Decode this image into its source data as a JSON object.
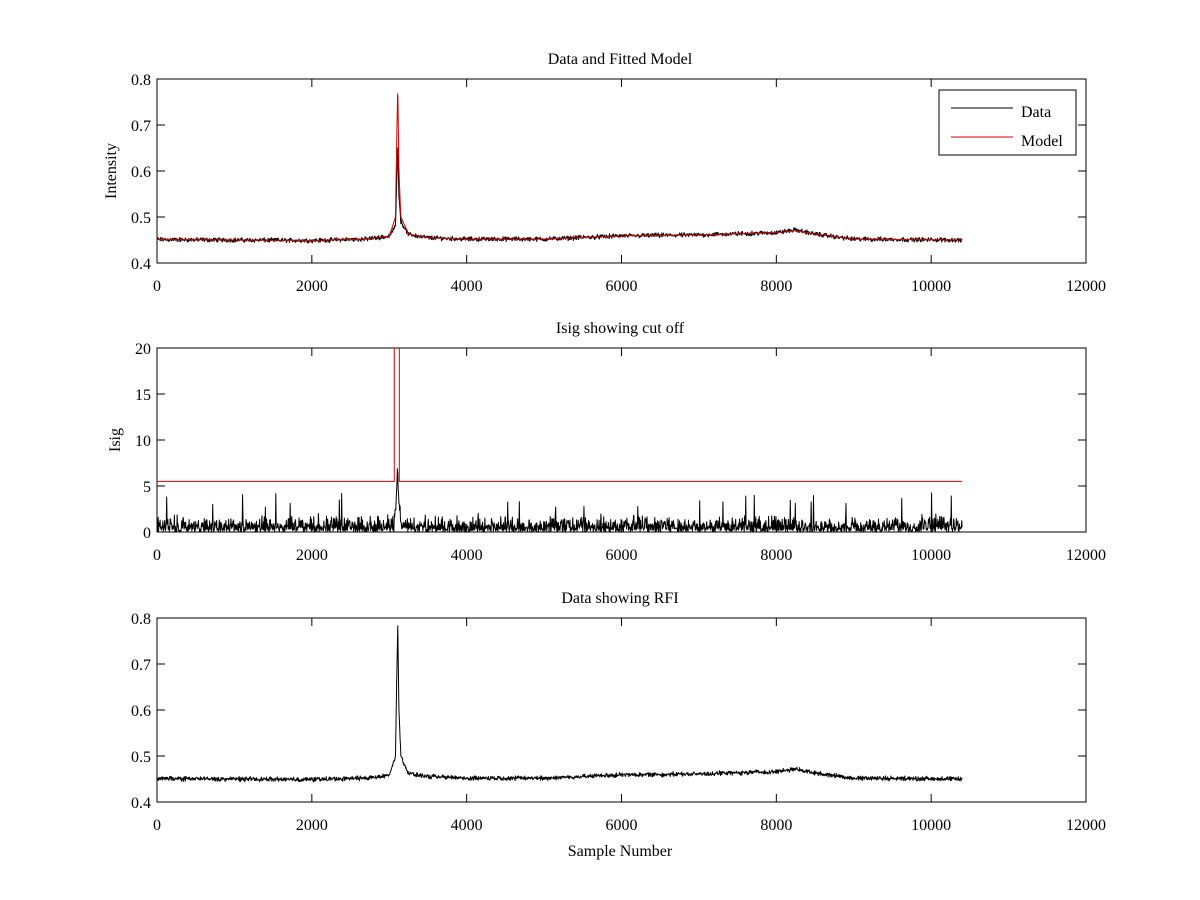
{
  "chart_data": [
    {
      "type": "line",
      "title": "Data and Fitted Model",
      "xlabel": "",
      "ylabel": "Intensity",
      "xlim": [
        0,
        12000
      ],
      "ylim": [
        0.4,
        0.8
      ],
      "xticks": [
        0,
        2000,
        4000,
        6000,
        8000,
        10000,
        12000
      ],
      "yticks": [
        0.4,
        0.5,
        0.6,
        0.7,
        0.8
      ],
      "ytick_labels": [
        "0.4",
        "0.5",
        "0.6",
        "0.7",
        "0.8"
      ],
      "grid": false,
      "legend": {
        "placement": "top-right",
        "entries": [
          "Data",
          "Model"
        ]
      },
      "series": [
        {
          "name": "Data",
          "color": "#000000",
          "x_range": [
            0,
            10400
          ],
          "baseline": [
            [
              0,
              0.451
            ],
            [
              2000,
              0.449
            ],
            [
              2700,
              0.452
            ],
            [
              3000,
              0.458
            ],
            [
              3080,
              0.48
            ],
            [
              3100,
              0.6
            ],
            [
              3110,
              0.65
            ],
            [
              3125,
              0.55
            ],
            [
              3150,
              0.49
            ],
            [
              3250,
              0.462
            ],
            [
              3500,
              0.455
            ],
            [
              4000,
              0.452
            ],
            [
              5000,
              0.452
            ],
            [
              6000,
              0.459
            ],
            [
              7000,
              0.461
            ],
            [
              8000,
              0.466
            ],
            [
              8250,
              0.472
            ],
            [
              8500,
              0.463
            ],
            [
              9000,
              0.452
            ],
            [
              10400,
              0.45
            ]
          ],
          "noise_amplitude": 0.006
        },
        {
          "name": "Model",
          "color": "#d40000",
          "x_range": [
            0,
            10400
          ],
          "baseline": [
            [
              0,
              0.451
            ],
            [
              2000,
              0.449
            ],
            [
              2700,
              0.452
            ],
            [
              3000,
              0.458
            ],
            [
              3080,
              0.5
            ],
            [
              3100,
              0.7
            ],
            [
              3110,
              0.785
            ],
            [
              3125,
              0.6
            ],
            [
              3150,
              0.5
            ],
            [
              3250,
              0.463
            ],
            [
              3500,
              0.455
            ],
            [
              4000,
              0.452
            ],
            [
              5000,
              0.452
            ],
            [
              6000,
              0.459
            ],
            [
              7000,
              0.461
            ],
            [
              8000,
              0.466
            ],
            [
              8250,
              0.47
            ],
            [
              8500,
              0.463
            ],
            [
              9000,
              0.452
            ],
            [
              10400,
              0.45
            ]
          ],
          "noise_amplitude": 0
        }
      ]
    },
    {
      "type": "line",
      "title": "Isig showing cut off",
      "xlabel": "",
      "ylabel": "Isig",
      "xlim": [
        0,
        12000
      ],
      "ylim": [
        0,
        20
      ],
      "xticks": [
        0,
        2000,
        4000,
        6000,
        8000,
        10000,
        12000
      ],
      "yticks": [
        0,
        5,
        10,
        15,
        20
      ],
      "ytick_labels": [
        "0",
        "5",
        "10",
        "15",
        "20"
      ],
      "grid": false,
      "series": [
        {
          "color": "#000000",
          "x_range": [
            0,
            10400
          ],
          "baseline": [
            [
              0,
              0
            ],
            [
              3060,
              0
            ],
            [
              3090,
              2.5
            ],
            [
              3105,
              6.3
            ],
            [
              3125,
              2.5
            ],
            [
              3160,
              0
            ],
            [
              10400,
              0
            ]
          ],
          "noise_amplitude": 2.2,
          "noise_max": 4.3
        },
        {
          "color": "#d40000",
          "x_range": [
            0,
            10400
          ],
          "cutoff_level": 5.5,
          "excursion_x": [
            3065,
            3130
          ],
          "excursion_top": 20
        }
      ]
    },
    {
      "type": "line",
      "title": "Data showing RFI",
      "xlabel": "Sample Number",
      "ylabel": "",
      "xlim": [
        0,
        12000
      ],
      "ylim": [
        0.4,
        0.8
      ],
      "xticks": [
        0,
        2000,
        4000,
        6000,
        8000,
        10000,
        12000
      ],
      "yticks": [
        0.4,
        0.5,
        0.6,
        0.7,
        0.8
      ],
      "ytick_labels": [
        "0.4",
        "0.5",
        "0.6",
        "0.7",
        "0.8"
      ],
      "grid": false,
      "series": [
        {
          "color": "#000000",
          "x_range": [
            0,
            10400
          ],
          "baseline": [
            [
              0,
              0.451
            ],
            [
              2000,
              0.449
            ],
            [
              2700,
              0.452
            ],
            [
              3000,
              0.458
            ],
            [
              3080,
              0.5
            ],
            [
              3100,
              0.7
            ],
            [
              3110,
              0.785
            ],
            [
              3125,
              0.6
            ],
            [
              3150,
              0.5
            ],
            [
              3250,
              0.462
            ],
            [
              3500,
              0.455
            ],
            [
              4000,
              0.452
            ],
            [
              5000,
              0.452
            ],
            [
              6000,
              0.459
            ],
            [
              7000,
              0.461
            ],
            [
              8000,
              0.466
            ],
            [
              8250,
              0.472
            ],
            [
              8500,
              0.463
            ],
            [
              9000,
              0.452
            ],
            [
              10400,
              0.45
            ]
          ],
          "noise_amplitude": 0.006
        }
      ]
    }
  ]
}
